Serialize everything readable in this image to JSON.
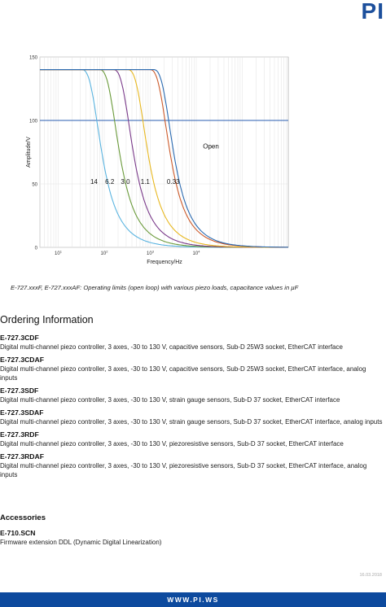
{
  "header": {
    "logo_text": "PI"
  },
  "chart_data": {
    "type": "line",
    "xlabel": "Frequency/Hz",
    "ylabel": "Amplitude/V",
    "xscale": "log",
    "xlim": [
      4,
      1000000
    ],
    "ylim": [
      0,
      150
    ],
    "yticks": [
      0,
      50,
      100,
      150
    ],
    "xticks": [
      {
        "value": 10,
        "label": "10",
        "exp": "1"
      },
      {
        "value": 100,
        "label": "10",
        "exp": "2"
      },
      {
        "value": 1000,
        "label": "10",
        "exp": "3"
      },
      {
        "value": 10000,
        "label": "10",
        "exp": "4"
      }
    ],
    "grid": true,
    "open_loop_limit": 100,
    "series": [
      {
        "name": "14",
        "color": "#5ab4e0",
        "flat_end": 33,
        "flat": 140,
        "label_x": 50,
        "label_y": 50
      },
      {
        "name": "6.2",
        "color": "#6a9a3a",
        "flat_end": 80,
        "flat": 140,
        "label_x": 105,
        "label_y": 50
      },
      {
        "name": "3.0",
        "color": "#7a3a8a",
        "flat_end": 160,
        "flat": 140,
        "label_x": 230,
        "label_y": 50
      },
      {
        "name": "1.1",
        "color": "#e8b820",
        "flat_end": 330,
        "flat": 140,
        "label_x": 620,
        "label_y": 50
      },
      {
        "name": "0.33",
        "color": "#cc5a2a",
        "flat_end": 1000,
        "flat": 140,
        "label_x": 2300,
        "label_y": 50
      },
      {
        "name": "Open",
        "color": "#2a6ab0",
        "flat_end": 1200,
        "flat": 140,
        "label_x": 14000,
        "label_y": 78
      }
    ]
  },
  "caption": "E-727.xxxF, E-727.xxxAF: Operating limits (open loop) with various piezo loads, capacitance values in µF",
  "ordering": {
    "heading": "Ordering Information",
    "items": [
      {
        "code": "E-727.3CDF",
        "desc": "Digital multi-channel piezo controller, 3 axes, -30 to 130 V, capacitive sensors, Sub-D 25W3 socket, EtherCAT interface"
      },
      {
        "code": "E-727.3CDAF",
        "desc": "Digital multi-channel piezo controller, 3 axes, -30 to 130 V, capacitive sensors, Sub-D 25W3 socket, EtherCAT interface, analog inputs"
      },
      {
        "code": "E-727.3SDF",
        "desc": "Digital multi-channel piezo controller, 3 axes, -30 to 130 V, strain gauge sensors, Sub-D 37 socket, EtherCAT interface"
      },
      {
        "code": "E-727.3SDAF",
        "desc": "Digital multi-channel piezo controller, 3 axes, -30 to 130 V, strain gauge sensors, Sub-D 37 socket, EtherCAT interface, analog inputs"
      },
      {
        "code": "E-727.3RDF",
        "desc": "Digital multi-channel piezo controller, 3 axes, -30 to 130 V, piezoresistive sensors, Sub-D 37 socket, EtherCAT interface"
      },
      {
        "code": "E-727.3RDAF",
        "desc": "Digital multi-channel piezo controller, 3 axes, -30 to 130 V, piezoresistive sensors, Sub-D 37 socket, EtherCAT interface, analog inputs"
      }
    ]
  },
  "accessories": {
    "heading": "Accessories",
    "items": [
      {
        "code": "E-710.SCN",
        "desc": "Firmware extension DDL (Dynamic Digital Linearization)"
      }
    ]
  },
  "footer": {
    "date": "16.03.2018",
    "url": "WWW.PI.WS"
  }
}
